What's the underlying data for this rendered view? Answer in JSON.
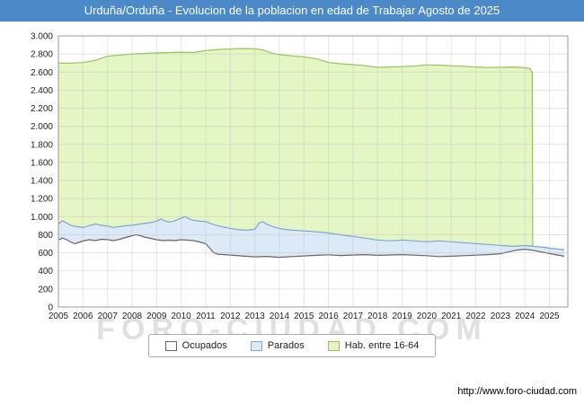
{
  "title": "Urduña/Orduña - Evolucion de la poblacion en edad de Trabajar Agosto de 2025",
  "watermark": "FORO-CIUDAD.COM",
  "footer_url": "http://www.foro-ciudad.com",
  "colors": {
    "titlebar": "#4b89c8",
    "grid": "#bbbbbb",
    "plot_border": "#999999"
  },
  "legend": [
    {
      "label": "Ocupados",
      "fill": "#fefefe",
      "stroke": "#666666"
    },
    {
      "label": "Parados",
      "fill": "#dce9f7",
      "stroke": "#7aa6d8"
    },
    {
      "label": "Hab. entre 16-64",
      "fill": "#e4f6c3",
      "stroke": "#95c45c"
    }
  ],
  "chart_data": {
    "type": "area",
    "title": "Urduña/Orduña - Evolucion de la poblacion en edad de Trabajar Agosto de 2025",
    "xlabel": "",
    "ylabel": "",
    "x_range": [
      2005,
      2025.75
    ],
    "ylim": [
      0,
      3000
    ],
    "y_tick_step": 200,
    "x_ticks": [
      2005,
      2006,
      2007,
      2008,
      2009,
      2010,
      2011,
      2012,
      2013,
      2014,
      2015,
      2016,
      2017,
      2018,
      2019,
      2020,
      2021,
      2022,
      2023,
      2024,
      2025
    ],
    "grid": true,
    "legend_position": "bottom",
    "series": [
      {
        "name": "Hab. entre 16-64",
        "fill": "#e4f6c3",
        "stroke": "#95c45c",
        "points": [
          [
            2005,
            2700
          ],
          [
            2005.5,
            2698
          ],
          [
            2006,
            2705
          ],
          [
            2006.5,
            2730
          ],
          [
            2007,
            2775
          ],
          [
            2007.5,
            2788
          ],
          [
            2008,
            2800
          ],
          [
            2008.5,
            2806
          ],
          [
            2009,
            2812
          ],
          [
            2009.5,
            2816
          ],
          [
            2010,
            2820
          ],
          [
            2010.5,
            2816
          ],
          [
            2011,
            2838
          ],
          [
            2011.5,
            2850
          ],
          [
            2012,
            2856
          ],
          [
            2012.5,
            2860
          ],
          [
            2013,
            2858
          ],
          [
            2013.33,
            2845
          ],
          [
            2013.67,
            2810
          ],
          [
            2014,
            2792
          ],
          [
            2014.5,
            2780
          ],
          [
            2015,
            2768
          ],
          [
            2015.5,
            2748
          ],
          [
            2016,
            2705
          ],
          [
            2016.5,
            2692
          ],
          [
            2017,
            2682
          ],
          [
            2017.5,
            2670
          ],
          [
            2018,
            2652
          ],
          [
            2018.5,
            2656
          ],
          [
            2019,
            2660
          ],
          [
            2019.5,
            2666
          ],
          [
            2020,
            2680
          ],
          [
            2020.5,
            2676
          ],
          [
            2021,
            2670
          ],
          [
            2021.5,
            2664
          ],
          [
            2022,
            2656
          ],
          [
            2022.5,
            2650
          ],
          [
            2023,
            2652
          ],
          [
            2023.5,
            2656
          ],
          [
            2024,
            2648
          ],
          [
            2024.2,
            2638
          ],
          [
            2024.3,
            2600
          ],
          [
            2024.32,
            615
          ]
        ]
      },
      {
        "name": "Parados",
        "fill": "#dce9f7",
        "stroke": "#7aa6d8",
        "points": [
          [
            2005,
            920
          ],
          [
            2005.17,
            955
          ],
          [
            2005.33,
            930
          ],
          [
            2005.5,
            905
          ],
          [
            2005.75,
            890
          ],
          [
            2006,
            880
          ],
          [
            2006.25,
            900
          ],
          [
            2006.5,
            920
          ],
          [
            2006.75,
            905
          ],
          [
            2007,
            895
          ],
          [
            2007.25,
            880
          ],
          [
            2007.5,
            890
          ],
          [
            2007.75,
            900
          ],
          [
            2008,
            905
          ],
          [
            2008.25,
            915
          ],
          [
            2008.5,
            925
          ],
          [
            2008.75,
            935
          ],
          [
            2009,
            950
          ],
          [
            2009.17,
            975
          ],
          [
            2009.33,
            955
          ],
          [
            2009.5,
            940
          ],
          [
            2009.75,
            955
          ],
          [
            2010,
            985
          ],
          [
            2010.17,
            1000
          ],
          [
            2010.33,
            975
          ],
          [
            2010.5,
            960
          ],
          [
            2010.75,
            950
          ],
          [
            2011,
            945
          ],
          [
            2011.25,
            920
          ],
          [
            2011.5,
            900
          ],
          [
            2011.75,
            885
          ],
          [
            2012,
            870
          ],
          [
            2012.33,
            855
          ],
          [
            2012.67,
            850
          ],
          [
            2013,
            860
          ],
          [
            2013.17,
            930
          ],
          [
            2013.33,
            945
          ],
          [
            2013.5,
            915
          ],
          [
            2013.75,
            890
          ],
          [
            2014,
            870
          ],
          [
            2014.33,
            855
          ],
          [
            2014.67,
            848
          ],
          [
            2015,
            842
          ],
          [
            2015.5,
            832
          ],
          [
            2016,
            820
          ],
          [
            2016.5,
            800
          ],
          [
            2017,
            782
          ],
          [
            2017.5,
            762
          ],
          [
            2018,
            742
          ],
          [
            2018.5,
            732
          ],
          [
            2019,
            742
          ],
          [
            2019.5,
            732
          ],
          [
            2020,
            722
          ],
          [
            2020.5,
            732
          ],
          [
            2021,
            722
          ],
          [
            2021.5,
            712
          ],
          [
            2022,
            702
          ],
          [
            2022.5,
            692
          ],
          [
            2023,
            682
          ],
          [
            2023.5,
            672
          ],
          [
            2024,
            680
          ],
          [
            2024.33,
            672
          ],
          [
            2024.67,
            665
          ],
          [
            2025,
            652
          ],
          [
            2025.33,
            642
          ],
          [
            2025.6,
            635
          ]
        ]
      },
      {
        "name": "Ocupados",
        "fill": "#fefefe",
        "stroke": "#666666",
        "points": [
          [
            2005,
            740
          ],
          [
            2005.17,
            765
          ],
          [
            2005.33,
            745
          ],
          [
            2005.5,
            720
          ],
          [
            2005.67,
            700
          ],
          [
            2005.83,
            715
          ],
          [
            2006,
            730
          ],
          [
            2006.25,
            745
          ],
          [
            2006.5,
            735
          ],
          [
            2006.75,
            750
          ],
          [
            2007,
            745
          ],
          [
            2007.25,
            735
          ],
          [
            2007.5,
            750
          ],
          [
            2007.75,
            770
          ],
          [
            2008,
            790
          ],
          [
            2008.17,
            800
          ],
          [
            2008.33,
            790
          ],
          [
            2008.5,
            775
          ],
          [
            2008.75,
            760
          ],
          [
            2009,
            745
          ],
          [
            2009.25,
            735
          ],
          [
            2009.5,
            740
          ],
          [
            2009.75,
            735
          ],
          [
            2010,
            745
          ],
          [
            2010.25,
            740
          ],
          [
            2010.5,
            735
          ],
          [
            2010.75,
            720
          ],
          [
            2011,
            700
          ],
          [
            2011.17,
            650
          ],
          [
            2011.33,
            600
          ],
          [
            2011.5,
            585
          ],
          [
            2011.75,
            580
          ],
          [
            2012,
            575
          ],
          [
            2012.5,
            565
          ],
          [
            2013,
            555
          ],
          [
            2013.5,
            560
          ],
          [
            2014,
            550
          ],
          [
            2014.5,
            558
          ],
          [
            2015,
            565
          ],
          [
            2015.5,
            572
          ],
          [
            2016,
            578
          ],
          [
            2016.5,
            570
          ],
          [
            2017,
            575
          ],
          [
            2017.5,
            580
          ],
          [
            2018,
            572
          ],
          [
            2018.5,
            576
          ],
          [
            2019,
            580
          ],
          [
            2019.5,
            574
          ],
          [
            2020,
            568
          ],
          [
            2020.5,
            558
          ],
          [
            2021,
            562
          ],
          [
            2021.5,
            568
          ],
          [
            2022,
            574
          ],
          [
            2022.5,
            580
          ],
          [
            2023,
            590
          ],
          [
            2023.33,
            610
          ],
          [
            2023.67,
            630
          ],
          [
            2024,
            640
          ],
          [
            2024.33,
            628
          ],
          [
            2024.67,
            610
          ],
          [
            2025,
            592
          ],
          [
            2025.33,
            575
          ],
          [
            2025.6,
            562
          ]
        ]
      }
    ]
  }
}
